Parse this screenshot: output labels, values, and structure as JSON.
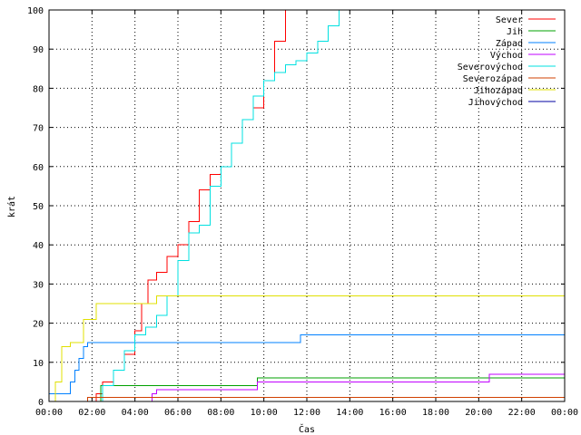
{
  "chart_data": {
    "type": "line",
    "title": "",
    "xlabel": "Čas",
    "ylabel": "krát",
    "xlim": [
      0,
      24
    ],
    "ylim": [
      0,
      100
    ],
    "x_ticks": [
      {
        "value": 0,
        "label": "00:00"
      },
      {
        "value": 2,
        "label": "02:00"
      },
      {
        "value": 4,
        "label": "04:00"
      },
      {
        "value": 6,
        "label": "06:00"
      },
      {
        "value": 8,
        "label": "08:00"
      },
      {
        "value": 10,
        "label": "10:00"
      },
      {
        "value": 12,
        "label": "12:00"
      },
      {
        "value": 14,
        "label": "14:00"
      },
      {
        "value": 16,
        "label": "16:00"
      },
      {
        "value": 18,
        "label": "18:00"
      },
      {
        "value": 20,
        "label": "20:00"
      },
      {
        "value": 22,
        "label": "22:00"
      },
      {
        "value": 24,
        "label": "00:00"
      }
    ],
    "y_ticks": [
      0,
      10,
      20,
      30,
      40,
      50,
      60,
      70,
      80,
      90,
      100
    ],
    "grid": true,
    "legend_position": "top-right",
    "series": [
      {
        "name": "Sever",
        "color": "#ff0000",
        "x": [
          1.8,
          2.2,
          2.5,
          3.0,
          3.5,
          4.0,
          4.3,
          4.6,
          5.0,
          5.5,
          6.0,
          6.5,
          7.0,
          7.5,
          8.0,
          8.5,
          9.0,
          9.5,
          10.0,
          10.5,
          11.0
        ],
        "y": [
          0,
          2,
          5,
          8,
          12,
          18,
          25,
          31,
          33,
          37,
          40,
          46,
          54,
          58,
          60,
          66,
          72,
          75,
          82,
          92,
          100
        ]
      },
      {
        "name": "Jih",
        "color": "#00a000",
        "x": [
          0,
          2.2,
          2.4,
          4.8,
          9.7,
          11.7,
          24
        ],
        "y": [
          0,
          0,
          4,
          4,
          6,
          6,
          6
        ]
      },
      {
        "name": "Západ",
        "color": "#0080ff",
        "x": [
          0,
          0.8,
          1.0,
          1.2,
          1.4,
          1.6,
          1.8,
          11.7,
          24
        ],
        "y": [
          2,
          2,
          5,
          8,
          11,
          14,
          15,
          17,
          17
        ]
      },
      {
        "name": "Východ",
        "color": "#c000ff",
        "x": [
          4.6,
          4.8,
          5.0,
          8.7,
          9.7,
          20.5,
          24
        ],
        "y": [
          0,
          2,
          3,
          3,
          5,
          7,
          7
        ]
      },
      {
        "name": "Severovýchod",
        "color": "#00e0e0",
        "x": [
          2.0,
          2.5,
          3.0,
          3.5,
          4.0,
          4.5,
          5.0,
          5.5,
          6.0,
          6.5,
          7.0,
          7.5,
          8.0,
          8.5,
          9.0,
          9.5,
          10.0,
          10.5,
          11.0,
          11.5,
          12.0,
          12.5,
          13.0,
          13.5
        ],
        "y": [
          0,
          4,
          8,
          13,
          17,
          19,
          22,
          27,
          36,
          43,
          45,
          55,
          60,
          66,
          72,
          78,
          82,
          84,
          86,
          87,
          89,
          92,
          96,
          100
        ]
      },
      {
        "name": "Severozápad",
        "color": "#d04000",
        "x": [
          1.7,
          1.8,
          24
        ],
        "y": [
          0,
          1,
          1
        ]
      },
      {
        "name": "Jihozápad",
        "color": "#e0e000",
        "x": [
          0,
          0.3,
          0.6,
          1.0,
          1.6,
          2.2,
          5.0,
          24
        ],
        "y": [
          0,
          5,
          14,
          15,
          21,
          25,
          27,
          27
        ]
      },
      {
        "name": "Jihovýchod",
        "color": "#0000a0",
        "x": [],
        "y": []
      }
    ]
  }
}
